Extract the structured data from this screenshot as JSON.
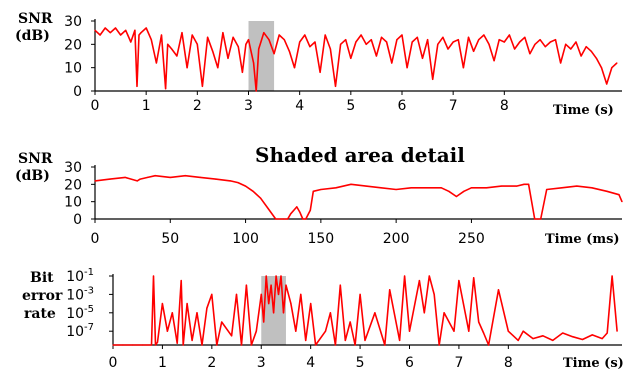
{
  "chart_data": [
    {
      "type": "line",
      "ylabel": [
        "SNR",
        "(dB)"
      ],
      "xlabel": "Time (s)",
      "xlim": [
        0,
        10.3
      ],
      "ylim": [
        0,
        30
      ],
      "xticks": [
        "0",
        "1",
        "2",
        "3",
        "4",
        "5",
        "6",
        "7",
        "8"
      ],
      "yticks": [
        "0",
        "10",
        "20",
        "30"
      ],
      "line_color": "#ff0000",
      "shaded_region": {
        "x_start": 3.0,
        "x_end": 3.5,
        "color": "#c0c0c0"
      },
      "series": [
        {
          "x": [
            0,
            0.1,
            0.2,
            0.3,
            0.4,
            0.5,
            0.6,
            0.7,
            0.78,
            0.82,
            0.86,
            0.9,
            1.0,
            1.1,
            1.2,
            1.3,
            1.38,
            1.42,
            1.5,
            1.6,
            1.7,
            1.8,
            1.9,
            2.0,
            2.1,
            2.2,
            2.3,
            2.4,
            2.5,
            2.6,
            2.7,
            2.8,
            2.88,
            2.95,
            3.0,
            3.1,
            3.15,
            3.2,
            3.3,
            3.4,
            3.5,
            3.6,
            3.7,
            3.8,
            3.9,
            4.0,
            4.1,
            4.2,
            4.3,
            4.4,
            4.5,
            4.6,
            4.7,
            4.8,
            4.9,
            5.0,
            5.1,
            5.2,
            5.3,
            5.4,
            5.5,
            5.6,
            5.7,
            5.8,
            5.9,
            6.0,
            6.1,
            6.2,
            6.3,
            6.4,
            6.5,
            6.6,
            6.7,
            6.8,
            6.9,
            7.0,
            7.1,
            7.2,
            7.3,
            7.4,
            7.5,
            7.6,
            7.7,
            7.8,
            7.9,
            8.0,
            8.1,
            8.2,
            8.3,
            8.4,
            8.5,
            8.6,
            8.7,
            8.8,
            8.9,
            9.0,
            9.1,
            9.2,
            9.3,
            9.4,
            9.5,
            9.6,
            9.7,
            9.8,
            9.9,
            10.0,
            10.1,
            10.2
          ],
          "y": [
            26,
            24,
            27,
            25,
            27,
            24,
            26,
            21,
            26,
            2,
            24,
            25,
            27,
            22,
            12,
            24,
            1,
            20,
            18,
            15,
            25,
            10,
            24,
            20,
            2,
            23,
            17,
            10,
            25,
            14,
            23,
            19,
            8,
            20,
            22,
            12,
            0,
            18,
            25,
            22,
            16,
            24,
            22,
            17,
            10,
            21,
            24,
            19,
            21,
            8,
            24,
            18,
            2,
            20,
            22,
            14,
            21,
            24,
            20,
            22,
            15,
            23,
            21,
            12,
            22,
            24,
            10,
            21,
            23,
            14,
            22,
            5,
            20,
            23,
            18,
            21,
            22,
            10,
            23,
            17,
            22,
            24,
            20,
            13,
            22,
            21,
            24,
            18,
            21,
            23,
            16,
            20,
            22,
            19,
            21,
            22,
            12,
            20,
            18,
            21,
            15,
            19,
            17,
            14,
            10,
            3,
            10,
            12
          ]
        }
      ]
    },
    {
      "type": "line",
      "title": "Shaded area detail",
      "ylabel": [
        "SNR",
        "(dB)"
      ],
      "xlabel": "Time (ms)",
      "xlim": [
        0,
        350
      ],
      "ylim": [
        0,
        30
      ],
      "xticks": [
        "0",
        "50",
        "100",
        "150",
        "200",
        "250"
      ],
      "yticks": [
        "0",
        "10",
        "20",
        "30"
      ],
      "line_color": "#ff0000",
      "series": [
        {
          "x": [
            0,
            10,
            20,
            28,
            30,
            35,
            40,
            50,
            60,
            70,
            80,
            90,
            95,
            100,
            105,
            110,
            115,
            120,
            125,
            128,
            130,
            134,
            136,
            138,
            140,
            143,
            145,
            150,
            160,
            170,
            180,
            190,
            200,
            210,
            220,
            230,
            235,
            240,
            245,
            250,
            260,
            270,
            280,
            285,
            288,
            292,
            294,
            296,
            300,
            310,
            320,
            330,
            340,
            348,
            350
          ],
          "y": [
            22,
            23,
            24,
            22,
            23,
            24,
            25,
            24,
            25,
            24,
            23,
            22,
            21,
            19,
            16,
            12,
            6,
            0,
            0,
            0,
            3,
            7,
            4,
            0,
            0,
            5,
            16,
            17,
            18,
            20,
            19,
            18,
            17,
            18,
            18,
            18,
            16,
            13,
            16,
            18,
            18,
            19,
            19,
            20,
            20,
            0,
            0,
            0,
            17,
            18,
            19,
            18,
            16,
            14,
            10
          ]
        }
      ]
    },
    {
      "type": "line",
      "ylabel": [
        "Bit",
        "error",
        "rate"
      ],
      "xlabel": "Time (s)",
      "xlim": [
        0,
        10.3
      ],
      "ylim_log10": [
        -8.5,
        -1
      ],
      "xticks": [
        "0",
        "1",
        "2",
        "3",
        "4",
        "5",
        "6",
        "7",
        "8"
      ],
      "yticks": [
        "10-1",
        "10-3",
        "10-5",
        "10-7"
      ],
      "line_color": "#ff0000",
      "shaded_region": {
        "x_start": 3.0,
        "x_end": 3.5,
        "color": "#c0c0c0"
      },
      "series": [
        {
          "x": [
            0,
            0.2,
            0.4,
            0.6,
            0.78,
            0.82,
            0.86,
            0.9,
            1.0,
            1.1,
            1.2,
            1.3,
            1.38,
            1.42,
            1.5,
            1.6,
            1.7,
            1.8,
            1.9,
            2.0,
            2.1,
            2.2,
            2.4,
            2.5,
            2.6,
            2.7,
            2.8,
            2.9,
            3.0,
            3.05,
            3.1,
            3.15,
            3.2,
            3.25,
            3.3,
            3.35,
            3.4,
            3.45,
            3.5,
            3.6,
            3.7,
            3.8,
            3.9,
            4.0,
            4.1,
            4.3,
            4.4,
            4.5,
            4.6,
            4.7,
            4.8,
            4.9,
            5.0,
            5.1,
            5.3,
            5.5,
            5.6,
            5.8,
            5.9,
            6.0,
            6.2,
            6.3,
            6.4,
            6.5,
            6.6,
            6.7,
            6.9,
            7.0,
            7.2,
            7.3,
            7.4,
            7.5,
            7.6,
            7.8,
            8.0,
            8.1,
            8.2,
            8.3,
            8.5,
            8.7,
            8.9,
            9.1,
            9.3,
            9.5,
            9.7,
            9.9,
            10.0,
            10.1,
            10.2
          ],
          "y": [
            -8.5,
            -8.5,
            -8.5,
            -8.5,
            -8.5,
            -1,
            -8.5,
            -8.2,
            -4,
            -7,
            -5,
            -8.3,
            -1.5,
            -8.5,
            -4,
            -8,
            -5,
            -8.5,
            -4.5,
            -3,
            -8.5,
            -6,
            -7.5,
            -3,
            -8.5,
            -2,
            -8.5,
            -7,
            -3,
            -6,
            -1,
            -4,
            -2,
            -5,
            -1,
            -3,
            -1,
            -5,
            -2,
            -4,
            -7,
            -3,
            -8,
            -4,
            -8.5,
            -7,
            -5,
            -8.5,
            -2,
            -8,
            -6,
            -8.5,
            -3,
            -8,
            -5,
            -8.5,
            -2.5,
            -8,
            -1,
            -7,
            -1.5,
            -5,
            -1,
            -3,
            -8.5,
            -5,
            -7,
            -1.5,
            -7,
            -1.2,
            -6,
            -7.2,
            -8.5,
            -2.5,
            -7,
            -7.5,
            -8,
            -7,
            -7.8,
            -7.5,
            -8,
            -7.2,
            -7.6,
            -7.9,
            -7.4,
            -7.8,
            -7.2,
            -1,
            -7
          ]
        }
      ]
    }
  ]
}
